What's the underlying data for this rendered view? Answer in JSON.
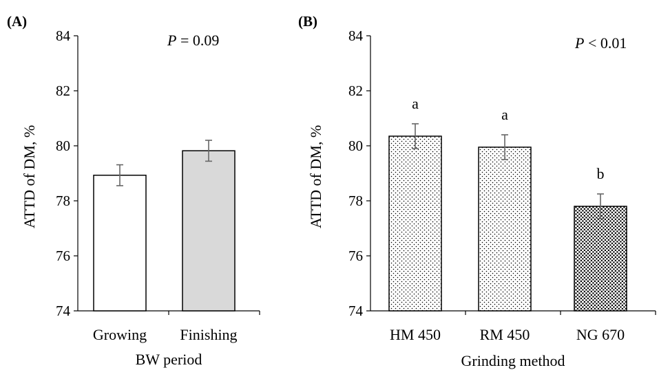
{
  "chart_data": [
    {
      "panel_label": "(A)",
      "type": "bar",
      "categories": [
        "Growing",
        "Finishing"
      ],
      "values": [
        78.93,
        79.82
      ],
      "errors": [
        0.38,
        0.38
      ],
      "colors": [
        "#ffffff",
        "#d9d9d9"
      ],
      "pattern": "none",
      "annotation": {
        "italic": "P",
        "rest": " = 0.09"
      },
      "letters": [],
      "xlabel": "BW period",
      "ylabel": "ATTD of DM, %",
      "ylim": [
        74,
        84
      ],
      "yticks": [
        "74",
        "76",
        "78",
        "80",
        "82",
        "84"
      ],
      "grid": false
    },
    {
      "panel_label": "(B)",
      "type": "bar",
      "categories": [
        "HM 450",
        "RM 450",
        "NG 670"
      ],
      "values": [
        80.35,
        79.95,
        77.8
      ],
      "errors": [
        0.45,
        0.45,
        0.45
      ],
      "colors": [
        "#ffffff",
        "#ffffff",
        "#ffffff"
      ],
      "pattern": [
        "sparse-dots",
        "sparse-dots",
        "dense-dots"
      ],
      "annotation": {
        "italic": "P",
        "rest": " < 0.01"
      },
      "letters": [
        "a",
        "a",
        "b"
      ],
      "xlabel": "Grinding method",
      "ylabel": "ATTD of DM, %",
      "ylim": [
        74,
        84
      ],
      "yticks": [
        "74",
        "76",
        "78",
        "80",
        "82",
        "84"
      ],
      "grid": false
    }
  ]
}
